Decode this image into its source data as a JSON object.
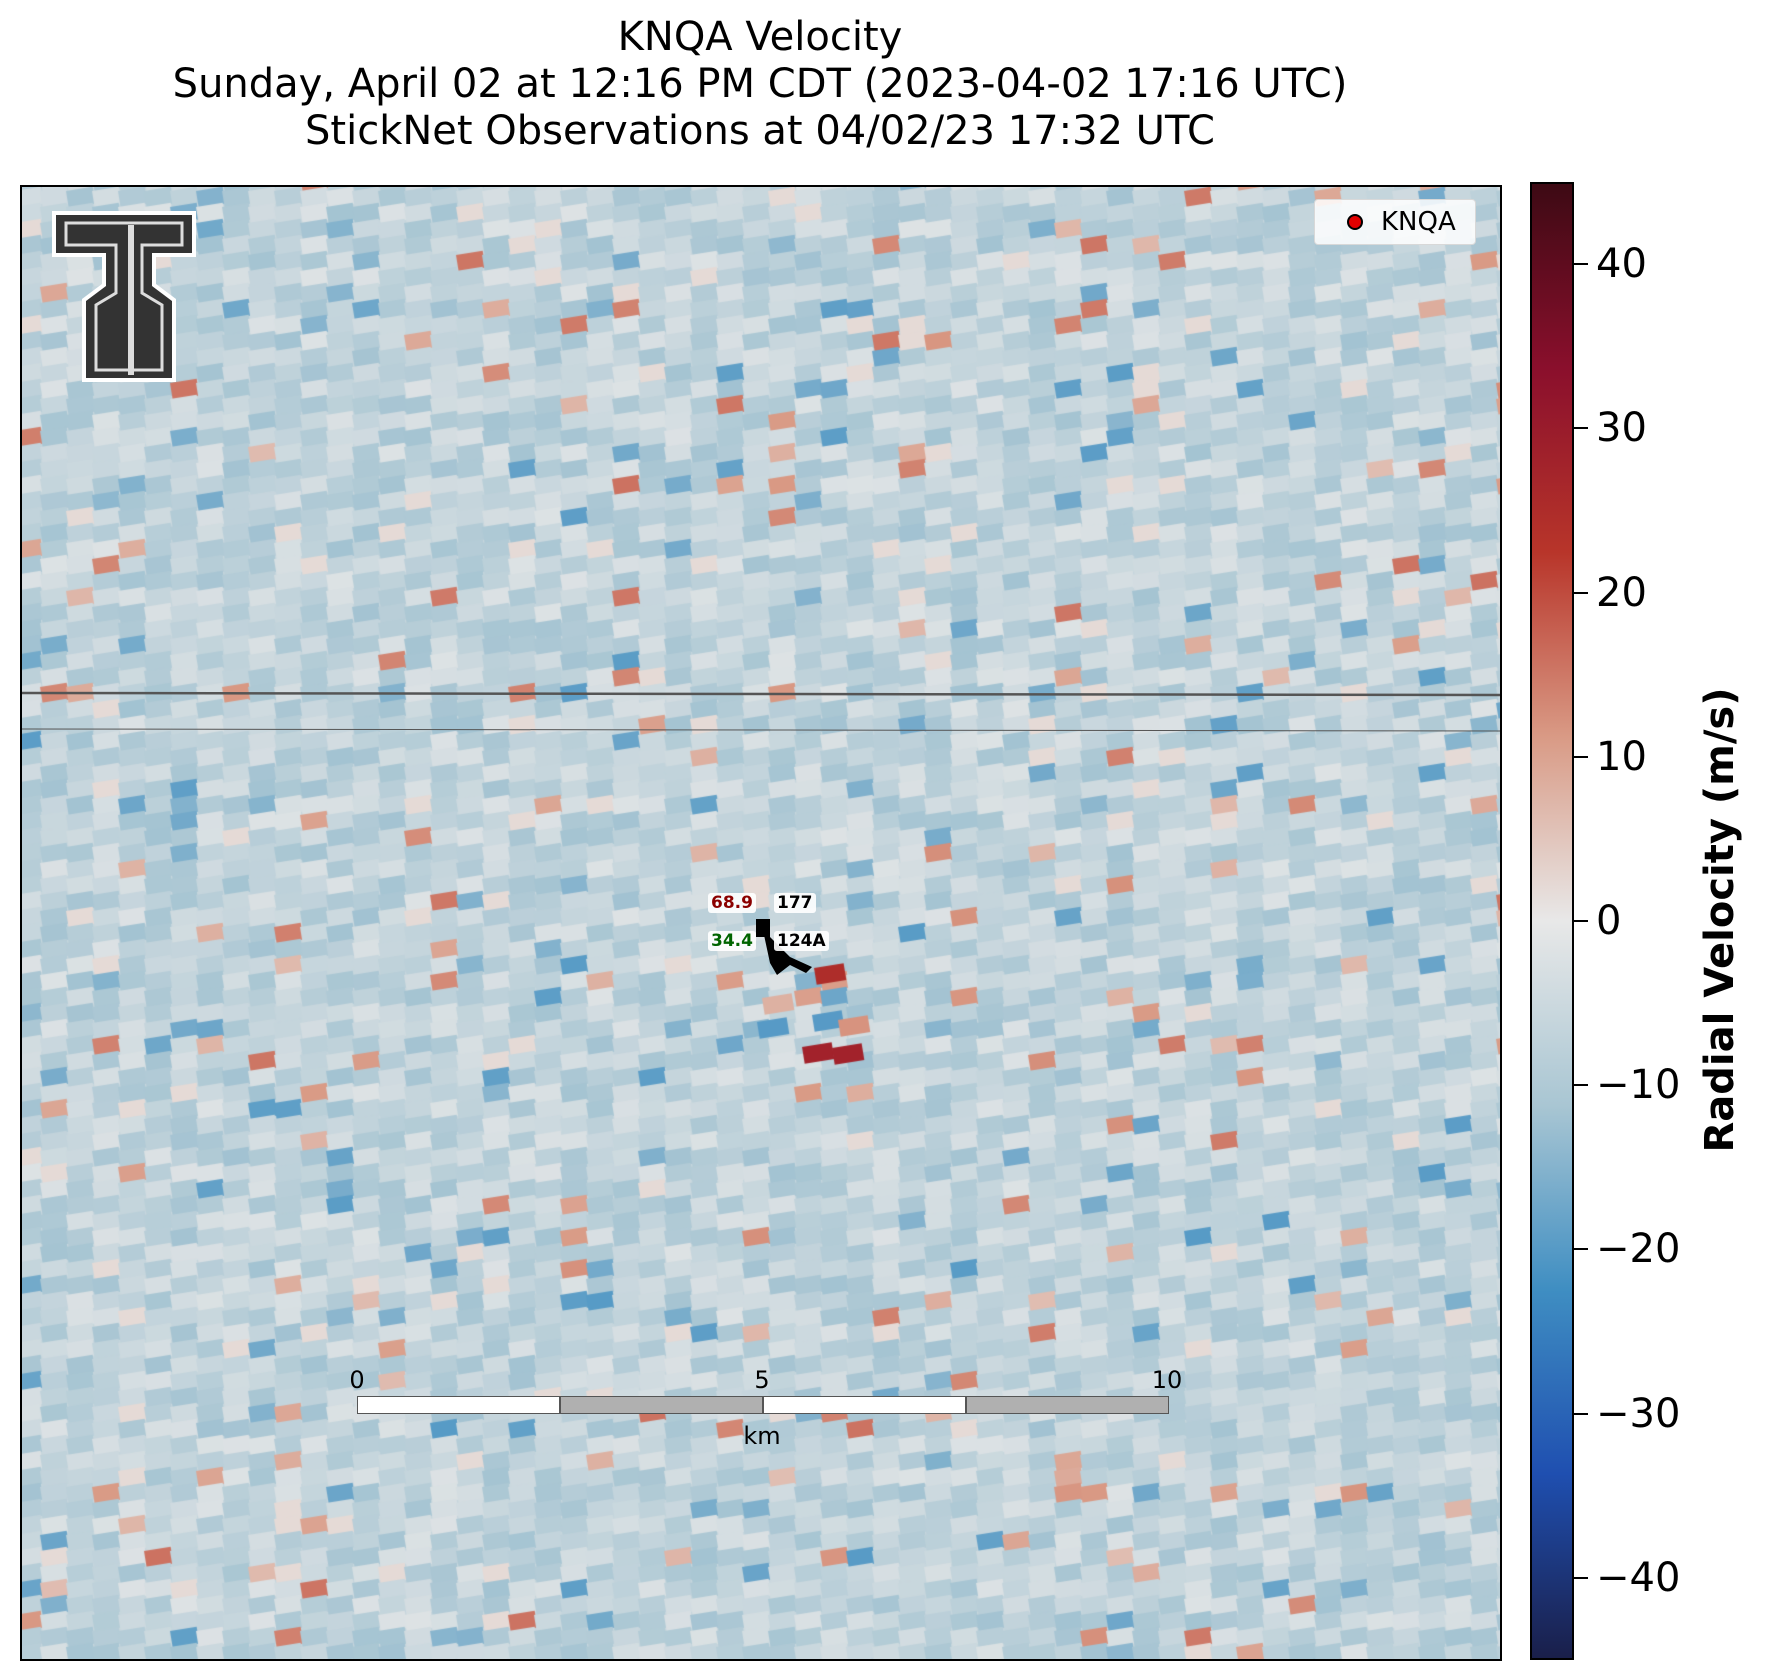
{
  "title": {
    "line1": "KNQA Velocity",
    "line2": "Sunday, April 02 at 12:16 PM CDT (2023-04-02 17:16 UTC)",
    "line3": "StickNet Observations at 04/02/23 17:32 UTC"
  },
  "legend": {
    "label": "KNQA",
    "marker_color": "#e30000"
  },
  "logo": {
    "name": "texas-tech-double-t-logo"
  },
  "station": {
    "temperature": "68.9",
    "dewpoint": "34.4",
    "pressure_code": "177",
    "station_id": "124A",
    "temperature_color": "#8b0000",
    "dewpoint_color": "#006400"
  },
  "scalebar": {
    "ticks": [
      "0",
      "5",
      "10"
    ],
    "unit": "km"
  },
  "colorbar": {
    "label": "Radial Velocity (m/s)",
    "min": -45,
    "max": 45,
    "ticks": [
      "40",
      "30",
      "20",
      "10",
      "0",
      "−10",
      "−20",
      "−30",
      "−40"
    ],
    "colors": [
      "#1a1f4a",
      "#1f4fb0",
      "#3f8ec2",
      "#a9c6d3",
      "#e8e8e8",
      "#d99a85",
      "#b8352a",
      "#8a0f2c",
      "#3d0a14"
    ]
  },
  "chart_data": {
    "type": "heatmap",
    "title": "KNQA Velocity",
    "colorbar_label": "Radial Velocity (m/s)",
    "vmin": -45,
    "vmax": 45,
    "field_description": "mostly weak inbound velocities about -5 to -12 m/s with scattered small outbound pixels",
    "notable_values": [
      {
        "area": "near station",
        "value": 25
      },
      {
        "area": "south of station",
        "value": 28
      },
      {
        "area": "south of station",
        "value": -20
      },
      {
        "area": "northwest",
        "value": -20
      }
    ]
  }
}
